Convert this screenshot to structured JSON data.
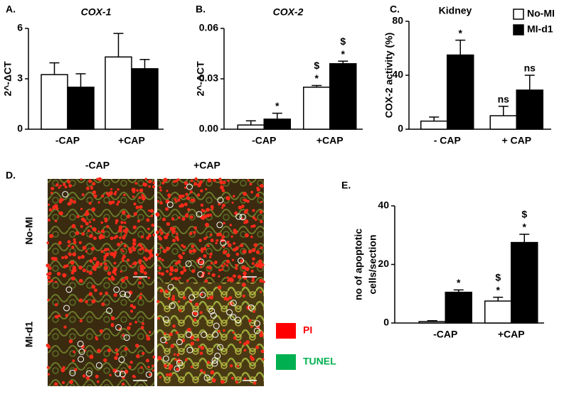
{
  "chart_data": [
    {
      "type": "bar",
      "panel": "A.",
      "title": "COX-1",
      "y_label": "2^-ΔCT",
      "categories": [
        "-CAP",
        "+CAP"
      ],
      "series": [
        {
          "color": "#ffffff",
          "values": [
            3.25,
            4.3
          ],
          "errors": [
            0.7,
            1.4
          ]
        },
        {
          "color": "#000000",
          "values": [
            2.5,
            3.6
          ],
          "errors": [
            0.8,
            0.55
          ]
        }
      ],
      "ylim": [
        0,
        6
      ],
      "yticks": [
        0,
        3,
        6
      ]
    },
    {
      "type": "bar",
      "panel": "B.",
      "title": "COX-2",
      "y_label": "2^-ΔCT",
      "categories": [
        "-CAP",
        "+CAP"
      ],
      "series": [
        {
          "color": "#ffffff",
          "values": [
            0.0025,
            0.025
          ],
          "errors": [
            0.0025,
            0.001
          ],
          "sig": [
            null,
            [
              "$",
              "*"
            ]
          ]
        },
        {
          "color": "#000000",
          "values": [
            0.006,
            0.039
          ],
          "errors": [
            0.0035,
            0.0015
          ],
          "sig": [
            [
              "*"
            ],
            [
              "$",
              "*"
            ]
          ]
        }
      ],
      "ylim": [
        0,
        0.06
      ],
      "yticks": [
        {
          "value": 0,
          "label": "0.00"
        },
        0.03,
        0.06
      ]
    },
    {
      "type": "bar",
      "panel": "C.",
      "title": "Kidney",
      "y_label": "COX-2 activity (%)",
      "categories": [
        "- CAP",
        "+ CAP"
      ],
      "series": [
        {
          "name": "No-MI",
          "color": "#ffffff",
          "values": [
            6,
            10
          ],
          "errors": [
            3,
            7
          ],
          "sig": [
            null,
            [
              "ns"
            ]
          ]
        },
        {
          "name": "MI-d1",
          "color": "#000000",
          "values": [
            55,
            29
          ],
          "errors": [
            11,
            11
          ],
          "sig": [
            [
              "*"
            ],
            [
              "ns"
            ]
          ]
        }
      ],
      "ylim": [
        0,
        80
      ],
      "yticks": [
        0,
        40,
        80
      ],
      "legend": "upper right"
    },
    {
      "type": "bar",
      "panel": "E.",
      "y_label": [
        "no of apoptotic",
        "cells/section"
      ],
      "categories": [
        "-CAP",
        "+CAP"
      ],
      "series": [
        {
          "color": "#ffffff",
          "values": [
            0.5,
            7.5
          ],
          "errors": [
            0.3,
            1.3
          ],
          "sig": [
            null,
            [
              "$",
              "*"
            ]
          ]
        },
        {
          "color": "#000000",
          "values": [
            10.5,
            27.5
          ],
          "errors": [
            0.8,
            2.8
          ],
          "sig": [
            [
              "*"
            ],
            [
              "$",
              "*"
            ]
          ]
        }
      ],
      "ylim": [
        0,
        40
      ],
      "yticks": [
        0,
        20,
        40
      ]
    }
  ],
  "image_panel": {
    "panel": "D.",
    "columns": [
      "-CAP",
      "+CAP"
    ],
    "rows": [
      "No-MI",
      "MI-d1"
    ],
    "legend": [
      {
        "name": "PI",
        "color": "#ff0000"
      },
      {
        "name": "TUNEL",
        "color": "#00b050"
      }
    ]
  }
}
